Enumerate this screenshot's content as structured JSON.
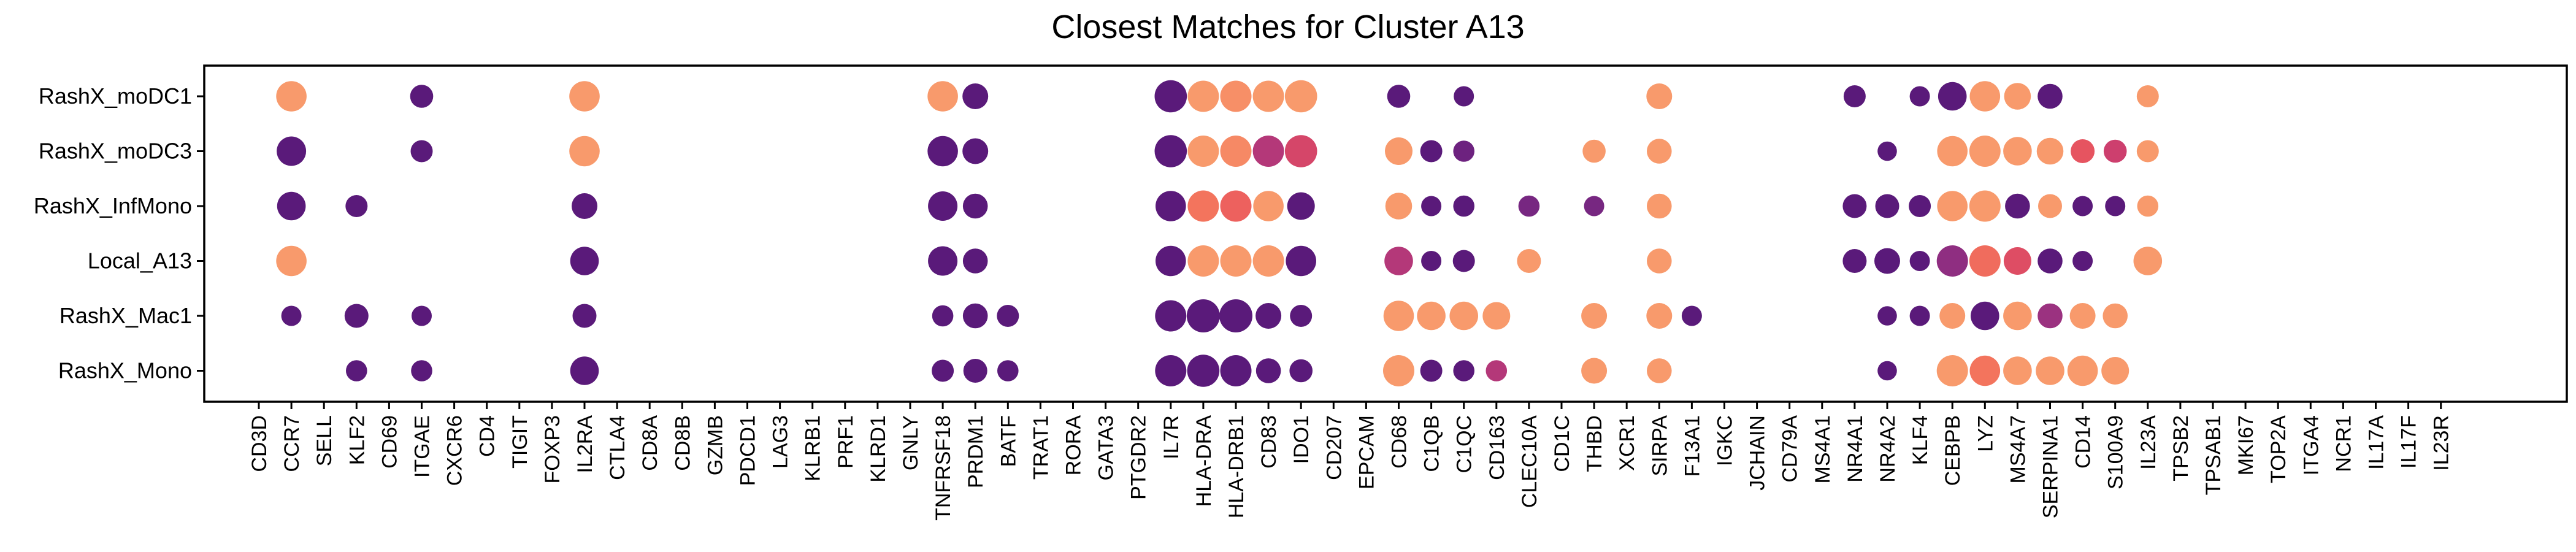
{
  "chart_data": {
    "type": "dotplot",
    "title": "Closest Matches for Cluster A13",
    "xlabel": "",
    "ylabel": "",
    "grid": false,
    "legend": "none",
    "color_scale": [
      "#5a1a7a",
      "#7a2882",
      "#a33480",
      "#cd3f6e",
      "#e9565e",
      "#f4775d",
      "#f89a6c"
    ],
    "rows": [
      "RashX_moDC1",
      "RashX_moDC3",
      "RashX_InfMono",
      "Local_A13",
      "RashX_Mac1",
      "RashX_Mono"
    ],
    "genes": [
      "CD3D",
      "CCR7",
      "SELL",
      "KLF2",
      "CD69",
      "ITGAE",
      "CXCR6",
      "CD4",
      "TIGIT",
      "FOXP3",
      "IL2RA",
      "CTLA4",
      "CD8A",
      "CD8B",
      "GZMB",
      "PDCD1",
      "LAG3",
      "KLRB1",
      "PRF1",
      "KLRD1",
      "GNLY",
      "TNFRSF18",
      "PRDM1",
      "BATF",
      "TRAT1",
      "RORA",
      "GATA3",
      "PTGDR2",
      "IL7R",
      "HLA-DRA",
      "HLA-DRB1",
      "CD83",
      "IDO1",
      "CD207",
      "EPCAM",
      "CD68",
      "C1QB",
      "C1QC",
      "CD163",
      "CLEC10A",
      "CD1C",
      "THBD",
      "XCR1",
      "SIRPA",
      "F13A1",
      "IGKC",
      "JCHAIN",
      "CD79A",
      "MS4A1",
      "NR4A1",
      "NR4A2",
      "KLF4",
      "CEBPB",
      "LYZ",
      "MS4A7",
      "SERPINA1",
      "CD14",
      "S100A9",
      "IL23A",
      "TPSB2",
      "TPSAB1",
      "MKI67",
      "TOP2A",
      "ITGA4",
      "NCR1",
      "IL17A",
      "IL17F",
      "IL23R"
    ],
    "size_encodes": "fraction of cells expressing (estimated, 0–1)",
    "color_encodes": "relative expression (estimated, 0 = dark purple, 1 = light orange)",
    "points": [
      {
        "row": "RashX_moDC1",
        "gene": "CCR7",
        "size": 0.85,
        "color": 1.0
      },
      {
        "row": "RashX_moDC1",
        "gene": "ITGAE",
        "size": 0.45,
        "color": 0.0
      },
      {
        "row": "RashX_moDC1",
        "gene": "IL2RA",
        "size": 0.85,
        "color": 1.0
      },
      {
        "row": "RashX_moDC1",
        "gene": "TNFRSF18",
        "size": 0.85,
        "color": 1.0
      },
      {
        "row": "RashX_moDC1",
        "gene": "PRDM1",
        "size": 0.6,
        "color": 0.0
      },
      {
        "row": "RashX_moDC1",
        "gene": "IL7R",
        "size": 0.95,
        "color": 0.0
      },
      {
        "row": "RashX_moDC1",
        "gene": "HLA-DRA",
        "size": 0.9,
        "color": 1.0
      },
      {
        "row": "RashX_moDC1",
        "gene": "HLA-DRB1",
        "size": 0.9,
        "color": 0.95
      },
      {
        "row": "RashX_moDC1",
        "gene": "CD83",
        "size": 0.9,
        "color": 1.0
      },
      {
        "row": "RashX_moDC1",
        "gene": "IDO1",
        "size": 0.95,
        "color": 1.0
      },
      {
        "row": "RashX_moDC1",
        "gene": "CD68",
        "size": 0.45,
        "color": 0.0
      },
      {
        "row": "RashX_moDC1",
        "gene": "C1QC",
        "size": 0.3,
        "color": 0.0
      },
      {
        "row": "RashX_moDC1",
        "gene": "SIRPA",
        "size": 0.6,
        "color": 1.0
      },
      {
        "row": "RashX_moDC1",
        "gene": "NR4A1",
        "size": 0.4,
        "color": 0.0
      },
      {
        "row": "RashX_moDC1",
        "gene": "KLF4",
        "size": 0.3,
        "color": 0.0
      },
      {
        "row": "RashX_moDC1",
        "gene": "CEBPB",
        "size": 0.75,
        "color": 0.0
      },
      {
        "row": "RashX_moDC1",
        "gene": "LYZ",
        "size": 0.85,
        "color": 1.0
      },
      {
        "row": "RashX_moDC1",
        "gene": "MS4A7",
        "size": 0.65,
        "color": 1.0
      },
      {
        "row": "RashX_moDC1",
        "gene": "SERPINA1",
        "size": 0.55,
        "color": 0.0
      },
      {
        "row": "RashX_moDC1",
        "gene": "IL23A",
        "size": 0.4,
        "color": 1.0
      },
      {
        "row": "RashX_moDC3",
        "gene": "CCR7",
        "size": 0.8,
        "color": 0.0
      },
      {
        "row": "RashX_moDC3",
        "gene": "ITGAE",
        "size": 0.4,
        "color": 0.0
      },
      {
        "row": "RashX_moDC3",
        "gene": "IL2RA",
        "size": 0.85,
        "color": 1.0
      },
      {
        "row": "RashX_moDC3",
        "gene": "TNFRSF18",
        "size": 0.85,
        "color": 0.0
      },
      {
        "row": "RashX_moDC3",
        "gene": "PRDM1",
        "size": 0.6,
        "color": 0.0
      },
      {
        "row": "RashX_moDC3",
        "gene": "IL7R",
        "size": 0.95,
        "color": 0.0
      },
      {
        "row": "RashX_moDC3",
        "gene": "HLA-DRA",
        "size": 0.9,
        "color": 1.0
      },
      {
        "row": "RashX_moDC3",
        "gene": "HLA-DRB1",
        "size": 0.9,
        "color": 0.92
      },
      {
        "row": "RashX_moDC3",
        "gene": "CD83",
        "size": 0.9,
        "color": 0.4
      },
      {
        "row": "RashX_moDC3",
        "gene": "IDO1",
        "size": 0.95,
        "color": 0.55
      },
      {
        "row": "RashX_moDC3",
        "gene": "CD68",
        "size": 0.7,
        "color": 1.0
      },
      {
        "row": "RashX_moDC3",
        "gene": "C1QB",
        "size": 0.4,
        "color": 0.0
      },
      {
        "row": "RashX_moDC3",
        "gene": "C1QC",
        "size": 0.35,
        "color": 0.1
      },
      {
        "row": "RashX_moDC3",
        "gene": "THBD",
        "size": 0.45,
        "color": 1.0
      },
      {
        "row": "RashX_moDC3",
        "gene": "SIRPA",
        "size": 0.55,
        "color": 1.0
      },
      {
        "row": "RashX_moDC3",
        "gene": "NR4A2",
        "size": 0.25,
        "color": 0.0
      },
      {
        "row": "RashX_moDC3",
        "gene": "CEBPB",
        "size": 0.85,
        "color": 1.0
      },
      {
        "row": "RashX_moDC3",
        "gene": "LYZ",
        "size": 0.9,
        "color": 1.0
      },
      {
        "row": "RashX_moDC3",
        "gene": "MS4A7",
        "size": 0.75,
        "color": 1.0
      },
      {
        "row": "RashX_moDC3",
        "gene": "SERPINA1",
        "size": 0.65,
        "color": 1.0
      },
      {
        "row": "RashX_moDC3",
        "gene": "CD14",
        "size": 0.5,
        "color": 0.65
      },
      {
        "row": "RashX_moDC3",
        "gene": "S100A9",
        "size": 0.45,
        "color": 0.5
      },
      {
        "row": "RashX_moDC3",
        "gene": "IL23A",
        "size": 0.4,
        "color": 1.0
      },
      {
        "row": "RashX_InfMono",
        "gene": "CCR7",
        "size": 0.75,
        "color": 0.0
      },
      {
        "row": "RashX_InfMono",
        "gene": "KLF2",
        "size": 0.4,
        "color": 0.0
      },
      {
        "row": "RashX_InfMono",
        "gene": "IL2RA",
        "size": 0.6,
        "color": 0.0
      },
      {
        "row": "RashX_InfMono",
        "gene": "TNFRSF18",
        "size": 0.8,
        "color": 0.0
      },
      {
        "row": "RashX_InfMono",
        "gene": "PRDM1",
        "size": 0.55,
        "color": 0.0
      },
      {
        "row": "RashX_InfMono",
        "gene": "IL7R",
        "size": 0.85,
        "color": 0.0
      },
      {
        "row": "RashX_InfMono",
        "gene": "HLA-DRA",
        "size": 0.9,
        "color": 0.82
      },
      {
        "row": "RashX_InfMono",
        "gene": "HLA-DRB1",
        "size": 0.9,
        "color": 0.72
      },
      {
        "row": "RashX_InfMono",
        "gene": "CD83",
        "size": 0.85,
        "color": 1.0
      },
      {
        "row": "RashX_InfMono",
        "gene": "IDO1",
        "size": 0.7,
        "color": 0.0
      },
      {
        "row": "RashX_InfMono",
        "gene": "CD68",
        "size": 0.65,
        "color": 1.0
      },
      {
        "row": "RashX_InfMono",
        "gene": "C1QB",
        "size": 0.3,
        "color": 0.0
      },
      {
        "row": "RashX_InfMono",
        "gene": "C1QC",
        "size": 0.35,
        "color": 0.0
      },
      {
        "row": "RashX_InfMono",
        "gene": "CLEC10A",
        "size": 0.35,
        "color": 0.15
      },
      {
        "row": "RashX_InfMono",
        "gene": "THBD",
        "size": 0.3,
        "color": 0.15
      },
      {
        "row": "RashX_InfMono",
        "gene": "SIRPA",
        "size": 0.55,
        "color": 1.0
      },
      {
        "row": "RashX_InfMono",
        "gene": "NR4A1",
        "size": 0.5,
        "color": 0.0
      },
      {
        "row": "RashX_InfMono",
        "gene": "NR4A2",
        "size": 0.5,
        "color": 0.0
      },
      {
        "row": "RashX_InfMono",
        "gene": "KLF4",
        "size": 0.4,
        "color": 0.0
      },
      {
        "row": "RashX_InfMono",
        "gene": "CEBPB",
        "size": 0.85,
        "color": 1.0
      },
      {
        "row": "RashX_InfMono",
        "gene": "LYZ",
        "size": 0.9,
        "color": 1.0
      },
      {
        "row": "RashX_InfMono",
        "gene": "MS4A7",
        "size": 0.55,
        "color": 0.0
      },
      {
        "row": "RashX_InfMono",
        "gene": "SERPINA1",
        "size": 0.5,
        "color": 1.0
      },
      {
        "row": "RashX_InfMono",
        "gene": "CD14",
        "size": 0.3,
        "color": 0.0
      },
      {
        "row": "RashX_InfMono",
        "gene": "S100A9",
        "size": 0.3,
        "color": 0.0
      },
      {
        "row": "RashX_InfMono",
        "gene": "IL23A",
        "size": 0.35,
        "color": 1.0
      },
      {
        "row": "Local_A13",
        "gene": "CCR7",
        "size": 0.85,
        "color": 1.0
      },
      {
        "row": "Local_A13",
        "gene": "IL2RA",
        "size": 0.75,
        "color": 0.0
      },
      {
        "row": "Local_A13",
        "gene": "TNFRSF18",
        "size": 0.8,
        "color": 0.0
      },
      {
        "row": "Local_A13",
        "gene": "PRDM1",
        "size": 0.55,
        "color": 0.0
      },
      {
        "row": "Local_A13",
        "gene": "IL7R",
        "size": 0.85,
        "color": 0.0
      },
      {
        "row": "Local_A13",
        "gene": "HLA-DRA",
        "size": 0.9,
        "color": 1.0
      },
      {
        "row": "Local_A13",
        "gene": "HLA-DRB1",
        "size": 0.9,
        "color": 1.0
      },
      {
        "row": "Local_A13",
        "gene": "CD83",
        "size": 0.9,
        "color": 1.0
      },
      {
        "row": "Local_A13",
        "gene": "IDO1",
        "size": 0.85,
        "color": 0.0
      },
      {
        "row": "Local_A13",
        "gene": "CD68",
        "size": 0.75,
        "color": 0.4
      },
      {
        "row": "Local_A13",
        "gene": "C1QB",
        "size": 0.3,
        "color": 0.0
      },
      {
        "row": "Local_A13",
        "gene": "C1QC",
        "size": 0.4,
        "color": 0.0
      },
      {
        "row": "Local_A13",
        "gene": "CLEC10A",
        "size": 0.5,
        "color": 1.0
      },
      {
        "row": "Local_A13",
        "gene": "SIRPA",
        "size": 0.55,
        "color": 1.0
      },
      {
        "row": "Local_A13",
        "gene": "NR4A1",
        "size": 0.5,
        "color": 0.0
      },
      {
        "row": "Local_A13",
        "gene": "NR4A2",
        "size": 0.6,
        "color": 0.0
      },
      {
        "row": "Local_A13",
        "gene": "KLF4",
        "size": 0.3,
        "color": 0.0
      },
      {
        "row": "Local_A13",
        "gene": "CEBPB",
        "size": 0.9,
        "color": 0.25
      },
      {
        "row": "Local_A13",
        "gene": "LYZ",
        "size": 0.9,
        "color": 0.78
      },
      {
        "row": "Local_A13",
        "gene": "MS4A7",
        "size": 0.7,
        "color": 0.6
      },
      {
        "row": "Local_A13",
        "gene": "SERPINA1",
        "size": 0.55,
        "color": 0.0
      },
      {
        "row": "Local_A13",
        "gene": "CD14",
        "size": 0.3,
        "color": 0.0
      },
      {
        "row": "Local_A13",
        "gene": "IL23A",
        "size": 0.75,
        "color": 1.0
      },
      {
        "row": "RashX_Mac1",
        "gene": "CCR7",
        "size": 0.3,
        "color": 0.0
      },
      {
        "row": "RashX_Mac1",
        "gene": "KLF2",
        "size": 0.5,
        "color": 0.0
      },
      {
        "row": "RashX_Mac1",
        "gene": "ITGAE",
        "size": 0.3,
        "color": 0.0
      },
      {
        "row": "RashX_Mac1",
        "gene": "IL2RA",
        "size": 0.5,
        "color": 0.0
      },
      {
        "row": "RashX_Mac1",
        "gene": "TNFRSF18",
        "size": 0.35,
        "color": 0.0
      },
      {
        "row": "RashX_Mac1",
        "gene": "PRDM1",
        "size": 0.55,
        "color": 0.0
      },
      {
        "row": "RashX_Mac1",
        "gene": "BATF",
        "size": 0.4,
        "color": 0.0
      },
      {
        "row": "RashX_Mac1",
        "gene": "IL7R",
        "size": 0.9,
        "color": 0.0
      },
      {
        "row": "RashX_Mac1",
        "gene": "HLA-DRA",
        "size": 1.0,
        "color": 0.0
      },
      {
        "row": "RashX_Mac1",
        "gene": "HLA-DRB1",
        "size": 1.0,
        "color": 0.0
      },
      {
        "row": "RashX_Mac1",
        "gene": "CD83",
        "size": 0.6,
        "color": 0.0
      },
      {
        "row": "RashX_Mac1",
        "gene": "IDO1",
        "size": 0.4,
        "color": 0.0
      },
      {
        "row": "RashX_Mac1",
        "gene": "CD68",
        "size": 0.85,
        "color": 1.0
      },
      {
        "row": "RashX_Mac1",
        "gene": "C1QB",
        "size": 0.75,
        "color": 1.0
      },
      {
        "row": "RashX_Mac1",
        "gene": "C1QC",
        "size": 0.75,
        "color": 1.0
      },
      {
        "row": "RashX_Mac1",
        "gene": "CD163",
        "size": 0.7,
        "color": 1.0
      },
      {
        "row": "RashX_Mac1",
        "gene": "THBD",
        "size": 0.6,
        "color": 1.0
      },
      {
        "row": "RashX_Mac1",
        "gene": "SIRPA",
        "size": 0.6,
        "color": 1.0
      },
      {
        "row": "RashX_Mac1",
        "gene": "F13A1",
        "size": 0.3,
        "color": 0.0
      },
      {
        "row": "RashX_Mac1",
        "gene": "NR4A2",
        "size": 0.25,
        "color": 0.0
      },
      {
        "row": "RashX_Mac1",
        "gene": "KLF4",
        "size": 0.3,
        "color": 0.0
      },
      {
        "row": "RashX_Mac1",
        "gene": "CEBPB",
        "size": 0.6,
        "color": 1.0
      },
      {
        "row": "RashX_Mac1",
        "gene": "LYZ",
        "size": 0.75,
        "color": 0.0
      },
      {
        "row": "RashX_Mac1",
        "gene": "MS4A7",
        "size": 0.75,
        "color": 1.0
      },
      {
        "row": "RashX_Mac1",
        "gene": "SERPINA1",
        "size": 0.55,
        "color": 0.3
      },
      {
        "row": "RashX_Mac1",
        "gene": "CD14",
        "size": 0.6,
        "color": 1.0
      },
      {
        "row": "RashX_Mac1",
        "gene": "S100A9",
        "size": 0.55,
        "color": 1.0
      },
      {
        "row": "RashX_Mono",
        "gene": "KLF2",
        "size": 0.35,
        "color": 0.0
      },
      {
        "row": "RashX_Mono",
        "gene": "ITGAE",
        "size": 0.35,
        "color": 0.0
      },
      {
        "row": "RashX_Mono",
        "gene": "IL2RA",
        "size": 0.75,
        "color": 0.0
      },
      {
        "row": "RashX_Mono",
        "gene": "TNFRSF18",
        "size": 0.4,
        "color": 0.0
      },
      {
        "row": "RashX_Mono",
        "gene": "PRDM1",
        "size": 0.5,
        "color": 0.0
      },
      {
        "row": "RashX_Mono",
        "gene": "BATF",
        "size": 0.35,
        "color": 0.0
      },
      {
        "row": "RashX_Mono",
        "gene": "IL7R",
        "size": 0.9,
        "color": 0.0
      },
      {
        "row": "RashX_Mono",
        "gene": "HLA-DRA",
        "size": 0.95,
        "color": 0.0
      },
      {
        "row": "RashX_Mono",
        "gene": "HLA-DRB1",
        "size": 0.9,
        "color": 0.0
      },
      {
        "row": "RashX_Mono",
        "gene": "CD83",
        "size": 0.55,
        "color": 0.0
      },
      {
        "row": "RashX_Mono",
        "gene": "IDO1",
        "size": 0.45,
        "color": 0.0
      },
      {
        "row": "RashX_Mono",
        "gene": "CD68",
        "size": 0.9,
        "color": 1.0
      },
      {
        "row": "RashX_Mono",
        "gene": "C1QB",
        "size": 0.4,
        "color": 0.0
      },
      {
        "row": "RashX_Mono",
        "gene": "C1QC",
        "size": 0.35,
        "color": 0.0
      },
      {
        "row": "RashX_Mono",
        "gene": "CD163",
        "size": 0.35,
        "color": 0.4
      },
      {
        "row": "RashX_Mono",
        "gene": "THBD",
        "size": 0.6,
        "color": 1.0
      },
      {
        "row": "RashX_Mono",
        "gene": "SIRPA",
        "size": 0.55,
        "color": 1.0
      },
      {
        "row": "RashX_Mono",
        "gene": "NR4A2",
        "size": 0.25,
        "color": 0.0
      },
      {
        "row": "RashX_Mono",
        "gene": "CEBPB",
        "size": 0.9,
        "color": 1.0
      },
      {
        "row": "RashX_Mono",
        "gene": "LYZ",
        "size": 0.85,
        "color": 0.82
      },
      {
        "row": "RashX_Mono",
        "gene": "MS4A7",
        "size": 0.75,
        "color": 1.0
      },
      {
        "row": "RashX_Mono",
        "gene": "SERPINA1",
        "size": 0.75,
        "color": 1.0
      },
      {
        "row": "RashX_Mono",
        "gene": "CD14",
        "size": 0.85,
        "color": 1.0
      },
      {
        "row": "RashX_Mono",
        "gene": "S100A9",
        "size": 0.7,
        "color": 1.0
      }
    ]
  }
}
